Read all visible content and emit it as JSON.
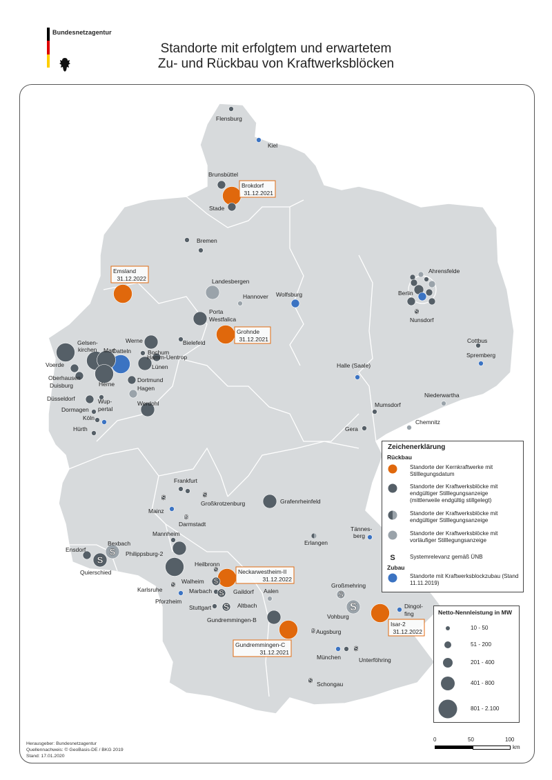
{
  "logo": {
    "org": "Bundesnetzagentur"
  },
  "title": {
    "line1": "Standorte mit erfolgtem und erwartetem",
    "line2": "Zu- und Rückbau von Kraftwerksblöcken"
  },
  "colors": {
    "nuclear": "#e0680c",
    "final": "#555f67",
    "provisional": "#9aa3aa",
    "zubau": "#3b73c2",
    "land": "#d7dadc",
    "border": "#ffffff"
  },
  "markers": [
    {
      "name": "Flensburg",
      "cat": "final",
      "sz": 1
    },
    {
      "name": "Kiel",
      "cat": "zubau",
      "sz": 1
    },
    {
      "name": "Brunsbüttel",
      "cat": "final",
      "sz": 2
    },
    {
      "name": "Brokdorf",
      "cat": "nuclear",
      "sz": 4
    },
    {
      "name": "Stade",
      "cat": "final",
      "sz": 2
    },
    {
      "name": "Bremen",
      "cat": "final",
      "sz": 1
    },
    {
      "name": "Bremen-2",
      "cat": "final",
      "sz": 1
    },
    {
      "name": "Emsland",
      "cat": "nuclear",
      "sz": 4
    },
    {
      "name": "Landesbergen",
      "cat": "provisional",
      "sz": 3
    },
    {
      "name": "Hannover",
      "cat": "provisional",
      "sz": 1
    },
    {
      "name": "Wolfsburg",
      "cat": "zubau",
      "sz": 2
    },
    {
      "name": "Porta Westfalica",
      "cat": "final",
      "sz": 3
    },
    {
      "name": "Grohnde",
      "cat": "nuclear",
      "sz": 4
    },
    {
      "name": "Bielefeld",
      "cat": "final",
      "sz": 1
    },
    {
      "name": "Werne",
      "cat": "final",
      "sz": 3
    },
    {
      "name": "Datteln",
      "cat": "zubau",
      "sz": 4
    },
    {
      "name": "Hamm-Uentrop",
      "cat": "final",
      "sz": 2
    },
    {
      "name": "Lünen",
      "cat": "final",
      "sz": 3
    },
    {
      "name": "Gelsenkirchen",
      "cat": "final",
      "sz": 4
    },
    {
      "name": "Marl",
      "cat": "final",
      "sz": 4
    },
    {
      "name": "Voerde",
      "cat": "final",
      "sz": 4
    },
    {
      "name": "Oberhausen",
      "cat": "final",
      "sz": 2
    },
    {
      "name": "Duisburg",
      "cat": "final",
      "sz": 2
    },
    {
      "name": "Herne",
      "cat": "final",
      "sz": 4
    },
    {
      "name": "Bochum",
      "cat": "final",
      "sz": 1
    },
    {
      "name": "Dortmund",
      "cat": "final",
      "sz": 2
    },
    {
      "name": "Hagen",
      "cat": "provisional",
      "sz": 2
    },
    {
      "name": "Werdohl",
      "cat": "final",
      "sz": 3
    },
    {
      "name": "Düsseldorf",
      "cat": "final",
      "sz": 2
    },
    {
      "name": "Wuppertal",
      "cat": "final",
      "sz": 1
    },
    {
      "name": "Dormagen",
      "cat": "final",
      "sz": 1
    },
    {
      "name": "Köln",
      "cat": "zubau",
      "sz": 1
    },
    {
      "name": "Köln-2",
      "cat": "final",
      "sz": 1
    },
    {
      "name": "Hürth",
      "cat": "final",
      "sz": 1
    },
    {
      "name": "Ahrensfelde",
      "cat": "final",
      "sz": 1
    },
    {
      "name": "Berlin",
      "cat": "zubau",
      "sz": 2
    },
    {
      "name": "Nunsdorf",
      "cat": "final",
      "sz": 1
    },
    {
      "name": "Cottbus",
      "cat": "final",
      "sz": 1
    },
    {
      "name": "Spremberg",
      "cat": "zubau",
      "sz": 1
    },
    {
      "name": "Halle (Saale)",
      "cat": "zubau",
      "sz": 1
    },
    {
      "name": "Niederwartha",
      "cat": "provisional",
      "sz": 1
    },
    {
      "name": "Mumsdorf",
      "cat": "final",
      "sz": 1
    },
    {
      "name": "Gera",
      "cat": "final",
      "sz": 1
    },
    {
      "name": "Chemnitz",
      "cat": "provisional",
      "sz": 1
    },
    {
      "name": "Frankfurt",
      "cat": "final",
      "sz": 1
    },
    {
      "name": "Frankfurt-2",
      "cat": "final",
      "sz": 1
    },
    {
      "name": "Großkrotzenburg",
      "cat": "final",
      "sz": 1
    },
    {
      "name": "Mainz",
      "cat": "final",
      "sz": 1
    },
    {
      "name": "Mainz-Zubau",
      "cat": "zubau",
      "sz": 1
    },
    {
      "name": "Darmstadt",
      "cat": "provisional",
      "sz": 1
    },
    {
      "name": "Grafenrheinfeld",
      "cat": "final",
      "sz": 3
    },
    {
      "name": "Tännesberg",
      "cat": "zubau",
      "sz": 1
    },
    {
      "name": "Erlangen",
      "cat": "half",
      "sz": 1
    },
    {
      "name": "Mannheim",
      "cat": "final",
      "sz": 1
    },
    {
      "name": "Bexbach",
      "cat": "provisional",
      "sz": 3
    },
    {
      "name": "Ensdorf",
      "cat": "final",
      "sz": 2
    },
    {
      "name": "Quierschied",
      "cat": "final",
      "sz": 3
    },
    {
      "name": "Philippsburg-2",
      "cat": "final",
      "sz": 3
    },
    {
      "name": "Philippsburg-3",
      "cat": "final",
      "sz": 4
    },
    {
      "name": "Heilbronn",
      "cat": "final",
      "sz": 1
    },
    {
      "name": "Neckarwestheim-II",
      "cat": "nuclear",
      "sz": 4
    },
    {
      "name": "Walheim",
      "cat": "final",
      "sz": 2
    },
    {
      "name": "Marbach",
      "cat": "final",
      "sz": 1
    },
    {
      "name": "Gaildorf",
      "cat": "final",
      "sz": 2
    },
    {
      "name": "Karlsruhe",
      "cat": "final",
      "sz": 1
    },
    {
      "name": "Pforzheim",
      "cat": "zubau",
      "sz": 1
    },
    {
      "name": "Stuttgart",
      "cat": "final",
      "sz": 1
    },
    {
      "name": "Altbach",
      "cat": "final",
      "sz": 2
    },
    {
      "name": "Aalen",
      "cat": "provisional",
      "sz": 1
    },
    {
      "name": "Gundremmingen-B",
      "cat": "final",
      "sz": 3
    },
    {
      "name": "Gundremmingen-C",
      "cat": "nuclear",
      "sz": 4
    },
    {
      "name": "Augsburg",
      "cat": "provisional",
      "sz": 1
    },
    {
      "name": "Großmehring",
      "cat": "provisional",
      "sz": 2
    },
    {
      "name": "Vohburg",
      "cat": "provisional",
      "sz": 3
    },
    {
      "name": "Isar-2",
      "cat": "nuclear",
      "sz": 4
    },
    {
      "name": "Dingolfing",
      "cat": "zubau",
      "sz": 1
    },
    {
      "name": "München",
      "cat": "zubau",
      "sz": 1
    },
    {
      "name": "München-2",
      "cat": "final",
      "sz": 1
    },
    {
      "name": "Unterföhring",
      "cat": "final",
      "sz": 1
    },
    {
      "name": "Schongau",
      "cat": "final",
      "sz": 1
    }
  ],
  "labels": [
    {
      "text": "Flensburg"
    },
    {
      "text": "Kiel"
    },
    {
      "text": "Brunsbüttel"
    },
    {
      "text": "Stade"
    },
    {
      "text": "Bremen"
    },
    {
      "text": "Landesbergen"
    },
    {
      "text": "Hannover"
    },
    {
      "text": "Wolfsburg"
    },
    {
      "text": "Porta"
    },
    {
      "text": "Westfalica"
    },
    {
      "text": "Bielefeld"
    },
    {
      "text": "Werne"
    },
    {
      "text": "Gelsen-"
    },
    {
      "text": "kirchen"
    },
    {
      "text": "Marl"
    },
    {
      "text": "Datteln"
    },
    {
      "text": "Hamm-Uentrop"
    },
    {
      "text": "Voerde"
    },
    {
      "text": "Bochum"
    },
    {
      "text": "Lünen"
    },
    {
      "text": "Oberhausen"
    },
    {
      "text": "Duisburg"
    },
    {
      "text": "Herne"
    },
    {
      "text": "Dortmund"
    },
    {
      "text": "Hagen"
    },
    {
      "text": "Werdohl"
    },
    {
      "text": "Düsseldorf"
    },
    {
      "text": "Wup-"
    },
    {
      "text": "pertal"
    },
    {
      "text": "Dormagen"
    },
    {
      "text": "Köln"
    },
    {
      "text": "Hürth"
    },
    {
      "text": "Ahrensfelde"
    },
    {
      "text": "Berlin"
    },
    {
      "text": "Nunsdorf"
    },
    {
      "text": "Cottbus"
    },
    {
      "text": "Spremberg"
    },
    {
      "text": "Halle (Saale)"
    },
    {
      "text": "Niederwartha"
    },
    {
      "text": "Mumsdorf"
    },
    {
      "text": "Gera"
    },
    {
      "text": "Chemnitz"
    },
    {
      "text": "Frankfurt"
    },
    {
      "text": "Großkrotzenburg"
    },
    {
      "text": "Mainz"
    },
    {
      "text": "Darmstadt"
    },
    {
      "text": "Grafenrheinfeld"
    },
    {
      "text": "Tännes-"
    },
    {
      "text": "berg"
    },
    {
      "text": "Erlangen"
    },
    {
      "text": "Mannheim"
    },
    {
      "text": "Bexbach"
    },
    {
      "text": "Ensdorf"
    },
    {
      "text": "Philippsburg-2"
    },
    {
      "text": "Quierschied"
    },
    {
      "text": "Heilbronn"
    },
    {
      "text": "Walheim"
    },
    {
      "text": "Marbach"
    },
    {
      "text": "Gaildorf"
    },
    {
      "text": "Karlsruhe"
    },
    {
      "text": "Pforzheim"
    },
    {
      "text": "Stuttgart"
    },
    {
      "text": "Altbach"
    },
    {
      "text": "Aalen"
    },
    {
      "text": "Gundremmingen-B"
    },
    {
      "text": "Augsburg"
    },
    {
      "text": "Großmehring"
    },
    {
      "text": "Vohburg"
    },
    {
      "text": "Dingol-"
    },
    {
      "text": "fing"
    },
    {
      "text": "München"
    },
    {
      "text": "Unterföhring"
    },
    {
      "text": "Schongau"
    }
  ],
  "nuclear_boxes": [
    {
      "name": "Brokdorf",
      "date": "31.12.2021"
    },
    {
      "name": "Emsland",
      "date": "31.12.2022"
    },
    {
      "name": "Grohnde",
      "date": "31.12.2021"
    },
    {
      "name": "Neckarwestheim-II",
      "date": "31.12.2022"
    },
    {
      "name": "Isar-2",
      "date": "31.12.2022"
    },
    {
      "name": "Gundremmingen-C",
      "date": "31.12.2021"
    }
  ],
  "s_markers": [
    "Mainz",
    "Großkrotzenburg",
    "Darmstadt",
    "Bexbach",
    "Quierschied",
    "Heilbronn",
    "Walheim",
    "Gaildorf",
    "Altbach",
    "Großmehring",
    "Vohburg",
    "Augsburg",
    "Unterföhring",
    "Schongau",
    "Nunsdorf",
    "Karlsruhe"
  ],
  "legend": {
    "title": "Zeichenerklärung",
    "rueckbau": "Rückbau",
    "items": [
      {
        "text": "Standorte der Kernkraftwerke mit Stilllegungsdatum"
      },
      {
        "text": "Standorte der Kraftwerksblöcke mit endgültiger Stilllegungsanzeige (mittlerweile endgültig stillgelegt)"
      },
      {
        "text": "Standorte der Kraftwerksblöcke mit endgültiger Stilllegungsanzeige"
      },
      {
        "text": "Standorte der Kraftwerksblöcke mit vorläufiger Stilllegungsanzeige"
      },
      {
        "text": "Systemrelevanz gemäß ÜNB"
      }
    ],
    "zubau": "Zubau",
    "zubau_item": "Standorte mit Kraftwerksblockzubau (Stand 11.11.2019)",
    "s_symbol": "S"
  },
  "size_legend": {
    "title": "Netto-Nennleistung in MW",
    "classes": [
      "10 - 50",
      "51 - 200",
      "201 - 400",
      "401 - 800",
      "801 - 2.100"
    ]
  },
  "scale": {
    "t0": "0",
    "t1": "50",
    "t2": "100",
    "unit": "km"
  },
  "footer": {
    "line1": "Herausgeber: Bundesnetzagentur",
    "line2": "Quellennachweis: © GeoBasis-DE / BKG 2019",
    "line3": "Stand: 17.01.2020"
  }
}
